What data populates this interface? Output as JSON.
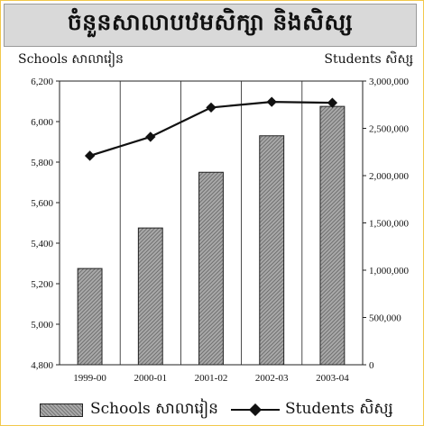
{
  "chart_data": {
    "type": "bar",
    "title": "ចំនួនសាលាបឋមសិក្សា  និងសិស្ស",
    "categories": [
      "1999-00",
      "2000-01",
      "2001-02",
      "2002-03",
      "2003-04"
    ],
    "series": [
      {
        "name": "Schools សាលារៀន",
        "type": "bar",
        "axis": "left",
        "values": [
          5275,
          5475,
          5750,
          5930,
          6075
        ]
      },
      {
        "name": "Students សិស្ស",
        "type": "line",
        "axis": "right",
        "values": [
          2210000,
          2410000,
          2720000,
          2780000,
          2770000
        ]
      }
    ],
    "left_axis": {
      "label": "Schools សាលារៀន",
      "ylim": [
        4800,
        6200
      ],
      "ticks": [
        "4,800",
        "5,000",
        "5,200",
        "5,400",
        "5,600",
        "5,800",
        "6,000",
        "6,200"
      ]
    },
    "right_axis": {
      "label": "Students សិស្ស",
      "ylim": [
        0,
        3000000
      ],
      "ticks": [
        "0",
        "500,000",
        "1,000,000",
        "1,500,000",
        "2,000,000",
        "2,500,000",
        "3,000,000"
      ]
    },
    "grid": "vertical",
    "legend": "bottom",
    "colors": {
      "bar_fill": "#8f8f8f",
      "line": "#111111",
      "title_background": "#d9d9d9",
      "frame_border": "#f2c84b"
    }
  }
}
